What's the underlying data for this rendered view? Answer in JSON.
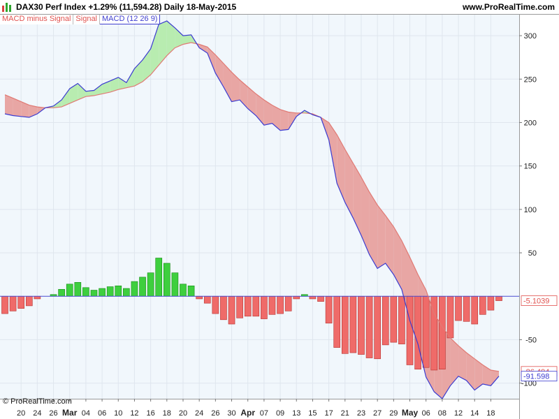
{
  "header": {
    "title": "DAX30 Perf Index   +1.29% (11,594.28)   Daily   18-May-2015",
    "site": "www.ProRealTime.com",
    "logo_colors": [
      "#d9413f",
      "#2fa52f",
      "#2fa52f"
    ]
  },
  "legend": {
    "items": [
      {
        "id": "macd-minus-signal",
        "label": "MACD minus Signal"
      },
      {
        "id": "signal",
        "label": "Signal"
      },
      {
        "id": "macd",
        "label": "MACD (12 26 9)"
      }
    ]
  },
  "footer": {
    "copyright": "© ProRealTime.com"
  },
  "colors": {
    "plot_bg": "#f1f7fc",
    "grid": "#dfe6ee",
    "macd_line": "#3b3bd0",
    "signal_line": "#e07a74",
    "fill_above": "#b8ecb0",
    "fill_below": "#e8a6a4",
    "hist_pos": "#3ecf3e",
    "hist_pos_edge": "#158a15",
    "hist_neg": "#ef6b69",
    "hist_neg_edge": "#b63330",
    "zero_line": "#4a4ad0"
  },
  "chart_data": {
    "type": "line",
    "indicator": "MACD (12 26 9)",
    "ylim": [
      -118,
      325
    ],
    "y_ticks": [
      300,
      250,
      200,
      150,
      100,
      50,
      -50,
      -100
    ],
    "grid": true,
    "x_ticks": [
      {
        "label": "20",
        "major": false,
        "index": 2
      },
      {
        "label": "24",
        "major": false,
        "index": 4
      },
      {
        "label": "26",
        "major": false,
        "index": 6
      },
      {
        "label": "Mar",
        "major": true,
        "index": 8
      },
      {
        "label": "04",
        "major": false,
        "index": 10
      },
      {
        "label": "06",
        "major": false,
        "index": 12
      },
      {
        "label": "10",
        "major": false,
        "index": 14
      },
      {
        "label": "12",
        "major": false,
        "index": 16
      },
      {
        "label": "16",
        "major": false,
        "index": 18
      },
      {
        "label": "18",
        "major": false,
        "index": 20
      },
      {
        "label": "20",
        "major": false,
        "index": 22
      },
      {
        "label": "24",
        "major": false,
        "index": 24
      },
      {
        "label": "26",
        "major": false,
        "index": 26
      },
      {
        "label": "30",
        "major": false,
        "index": 28
      },
      {
        "label": "Apr",
        "major": true,
        "index": 30
      },
      {
        "label": "07",
        "major": false,
        "index": 32
      },
      {
        "label": "09",
        "major": false,
        "index": 34
      },
      {
        "label": "13",
        "major": false,
        "index": 36
      },
      {
        "label": "15",
        "major": false,
        "index": 38
      },
      {
        "label": "17",
        "major": false,
        "index": 40
      },
      {
        "label": "21",
        "major": false,
        "index": 42
      },
      {
        "label": "23",
        "major": false,
        "index": 44
      },
      {
        "label": "27",
        "major": false,
        "index": 46
      },
      {
        "label": "29",
        "major": false,
        "index": 48
      },
      {
        "label": "May",
        "major": true,
        "index": 50
      },
      {
        "label": "06",
        "major": false,
        "index": 52
      },
      {
        "label": "08",
        "major": false,
        "index": 54
      },
      {
        "label": "12",
        "major": false,
        "index": 56
      },
      {
        "label": "14",
        "major": false,
        "index": 58
      },
      {
        "label": "18",
        "major": false,
        "index": 60
      }
    ],
    "series": [
      {
        "name": "MACD (12 26 9)",
        "values": [
          210,
          208,
          207,
          206,
          210,
          217,
          219,
          226,
          239,
          245,
          236,
          237,
          244,
          248,
          252,
          246,
          262,
          272,
          285,
          313,
          317,
          309,
          300,
          301,
          286,
          280,
          257,
          241,
          224,
          226,
          216,
          208,
          197,
          199,
          191,
          192,
          207,
          214,
          209,
          206,
          180,
          130,
          108,
          90,
          70,
          48,
          32,
          38,
          25,
          8,
          -28,
          -55,
          -93,
          -110,
          -118,
          -103,
          -92,
          -97,
          -108,
          -101,
          -103,
          -92
        ],
        "value_tag": "-91.598"
      },
      {
        "name": "Signal",
        "values": [
          232,
          228,
          224,
          220,
          218,
          217,
          217,
          218,
          222,
          226,
          230,
          231,
          233,
          235,
          238,
          240,
          242,
          247,
          255,
          266,
          277,
          286,
          290,
          292,
          290,
          287,
          278,
          268,
          258,
          249,
          241,
          233,
          226,
          220,
          215,
          212,
          211,
          211,
          210,
          206,
          200,
          186,
          169,
          153,
          137,
          120,
          105,
          93,
          80,
          64,
          45,
          25,
          7,
          -20,
          -35,
          -48,
          -57,
          -65,
          -72,
          -79,
          -85,
          -86.494
        ],
        "value_tag": "-86.494"
      },
      {
        "name": "MACD minus Signal",
        "values": [
          -20,
          -17,
          -14,
          -11,
          -3,
          0,
          2,
          8,
          14,
          16,
          10,
          7,
          9,
          11,
          12,
          9,
          17,
          22,
          27,
          44,
          38,
          27,
          14,
          12,
          -3,
          -8,
          -20,
          -27,
          -32,
          -25,
          -23,
          -23,
          -26,
          -21,
          -20,
          -17,
          -3,
          2,
          -3,
          -6,
          -31,
          -59,
          -66,
          -65,
          -67,
          -71,
          -72,
          -56,
          -53,
          -55,
          -79,
          -84,
          -82,
          -85,
          -84,
          -48,
          -28,
          -29,
          -32,
          -21,
          -16,
          -5.1039
        ],
        "value_tag": "-5.1039"
      }
    ]
  }
}
